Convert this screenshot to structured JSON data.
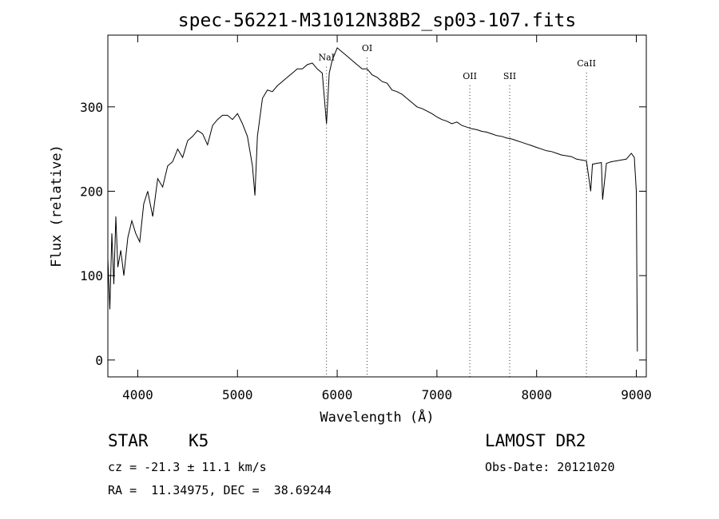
{
  "chart_data": {
    "type": "line",
    "title": "spec-56221-M31012N38B2_sp03-107.fits",
    "xlabel": "Wavelength (Å)",
    "ylabel": "Flux (relative)",
    "xlim": [
      3700,
      9100
    ],
    "ylim": [
      -20,
      385
    ],
    "xticks": [
      4000,
      5000,
      6000,
      7000,
      8000,
      9000
    ],
    "yticks": [
      0,
      100,
      200,
      300
    ],
    "line_color": "#000000",
    "spectrum": {
      "x": [
        3700,
        3720,
        3740,
        3760,
        3780,
        3800,
        3830,
        3860,
        3900,
        3940,
        3980,
        4020,
        4060,
        4100,
        4150,
        4200,
        4250,
        4300,
        4350,
        4400,
        4450,
        4500,
        4550,
        4600,
        4650,
        4700,
        4750,
        4800,
        4850,
        4900,
        4950,
        5000,
        5050,
        5100,
        5150,
        5175,
        5200,
        5250,
        5300,
        5350,
        5400,
        5450,
        5500,
        5550,
        5600,
        5650,
        5700,
        5750,
        5800,
        5850,
        5893,
        5920,
        5950,
        6000,
        6050,
        6100,
        6150,
        6200,
        6250,
        6300,
        6350,
        6400,
        6450,
        6500,
        6550,
        6600,
        6650,
        6700,
        6750,
        6800,
        6850,
        6900,
        6950,
        7000,
        7050,
        7100,
        7150,
        7200,
        7250,
        7300,
        7350,
        7400,
        7450,
        7500,
        7550,
        7600,
        7650,
        7700,
        7750,
        7800,
        7850,
        7900,
        7950,
        8000,
        8050,
        8100,
        8150,
        8200,
        8250,
        8300,
        8350,
        8400,
        8450,
        8500,
        8542,
        8560,
        8600,
        8650,
        8662,
        8700,
        8750,
        8800,
        8850,
        8900,
        8950,
        8980,
        9000,
        9010
      ],
      "y": [
        120,
        60,
        150,
        90,
        170,
        110,
        130,
        100,
        145,
        165,
        150,
        140,
        185,
        200,
        170,
        215,
        205,
        230,
        235,
        250,
        240,
        260,
        265,
        272,
        268,
        255,
        278,
        285,
        290,
        290,
        285,
        292,
        280,
        265,
        230,
        195,
        265,
        310,
        320,
        318,
        325,
        330,
        335,
        340,
        345,
        345,
        350,
        352,
        345,
        340,
        280,
        340,
        355,
        370,
        365,
        360,
        355,
        350,
        345,
        345,
        338,
        335,
        330,
        328,
        320,
        318,
        315,
        310,
        305,
        300,
        298,
        295,
        292,
        288,
        285,
        283,
        280,
        282,
        278,
        276,
        274,
        273,
        271,
        270,
        268,
        266,
        265,
        263,
        262,
        260,
        258,
        256,
        254,
        252,
        250,
        248,
        247,
        245,
        243,
        242,
        241,
        238,
        237,
        236,
        200,
        232,
        233,
        234,
        190,
        233,
        235,
        236,
        237,
        238,
        245,
        240,
        200,
        10
      ]
    },
    "annotations": [
      {
        "label": "NaI",
        "x": 5893,
        "y": 355
      },
      {
        "label": "OI",
        "x": 6300,
        "y": 366
      },
      {
        "label": "OII",
        "x": 7330,
        "y": 333
      },
      {
        "label": "SII",
        "x": 7730,
        "y": 333
      },
      {
        "label": "CaII",
        "x": 8500,
        "y": 348
      }
    ]
  },
  "info": {
    "class": "STAR",
    "subclass": "K5",
    "survey": "LAMOST DR2",
    "redshift": "cz = -21.3 ± 11.1 km/s",
    "obs_date": "Obs-Date: 20121020",
    "coords": "RA =  11.34975, DEC =  38.69244"
  }
}
